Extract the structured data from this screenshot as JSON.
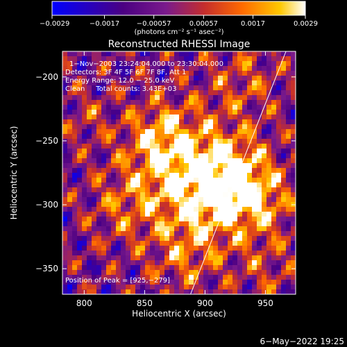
{
  "chart_data": {
    "type": "heatmap",
    "title": "Reconstructed RHESSI Image",
    "xlabel": "Heliocentric X (arcsec)",
    "ylabel": "Heliocentric Y (arcsec)",
    "xlim": [
      782,
      975
    ],
    "ylim": [
      -370,
      -180
    ],
    "xticks": [
      800,
      850,
      900,
      950
    ],
    "yticks": [
      -200,
      -250,
      -300,
      -350
    ],
    "xtick_labels": [
      "800",
      "850",
      "900",
      "950"
    ],
    "ytick_labels": [
      "−200",
      "−250",
      "−300",
      "−350"
    ],
    "colorbar": {
      "range": [
        -0.0029,
        0.0029
      ],
      "ticks": [
        -0.0029,
        -0.0017,
        -0.00057,
        0.00057,
        0.0017,
        0.0029
      ],
      "tick_labels": [
        "−0.0029",
        "−0.0017",
        "−0.00057",
        "0.00057",
        "0.0017",
        "0.0029"
      ],
      "unit_label": "(photons cm⁻² s⁻¹ asec⁻²)",
      "colors": [
        "#0000ff",
        "#4b0082",
        "#7a1a8c",
        "#c42d2d",
        "#ff6a00",
        "#ffc800",
        "#ffffff"
      ]
    },
    "annotations": [
      "1−Nov−2003 23:24:04.000 to 23:30:04.000",
      "Detectors: 3F 4F 5F 6F 7F 8F, Att 1",
      "Energy Range: 12.0 − 25.0 keV",
      "Clean     Total counts: 3.43E+03"
    ],
    "peak_label": "Position of Peak = [925,−279]",
    "peak": [
      925,
      -279
    ],
    "limb_line": {
      "x": [
        888,
        967
      ],
      "y": [
        -370,
        -180
      ]
    }
  },
  "timestamp": "6−May−2022 19:25"
}
